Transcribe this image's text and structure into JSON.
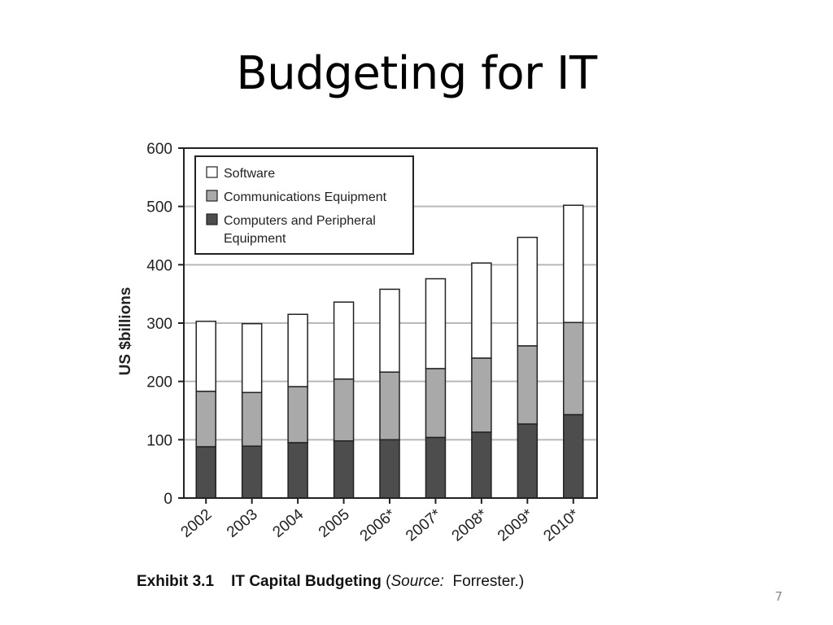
{
  "slide": {
    "title": "Budgeting for IT",
    "page_number": "7"
  },
  "caption": {
    "exhibit": "Exhibit 3.1",
    "title": "IT Capital Budgeting",
    "source_open": "(",
    "source_label": "Source:",
    "source_value": "Forrester.)"
  },
  "chart_data": {
    "type": "bar",
    "stacked": true,
    "categories": [
      "2002",
      "2003",
      "2004",
      "2005",
      "2006*",
      "2007*",
      "2008*",
      "2009*",
      "2010*"
    ],
    "series": [
      {
        "name": "Computers and Peripheral Equipment",
        "color": "#4d4d4d",
        "values": [
          88,
          89,
          95,
          98,
          100,
          104,
          113,
          127,
          143
        ]
      },
      {
        "name": "Communications Equipment",
        "color": "#a9a9a9",
        "values": [
          95,
          92,
          96,
          106,
          116,
          118,
          127,
          134,
          158
        ]
      },
      {
        "name": "Software",
        "color": "#ffffff",
        "values": [
          120,
          118,
          124,
          132,
          142,
          154,
          163,
          186,
          201
        ]
      }
    ],
    "legend_order": [
      "Software",
      "Communications Equipment",
      "Computers and Peripheral Equipment"
    ],
    "ylabel": "US $billions",
    "xlabel": "",
    "ylim": [
      0,
      600
    ],
    "yticks": [
      0,
      100,
      200,
      300,
      400,
      500,
      600
    ],
    "grid": true,
    "legend_position": "top-left"
  }
}
